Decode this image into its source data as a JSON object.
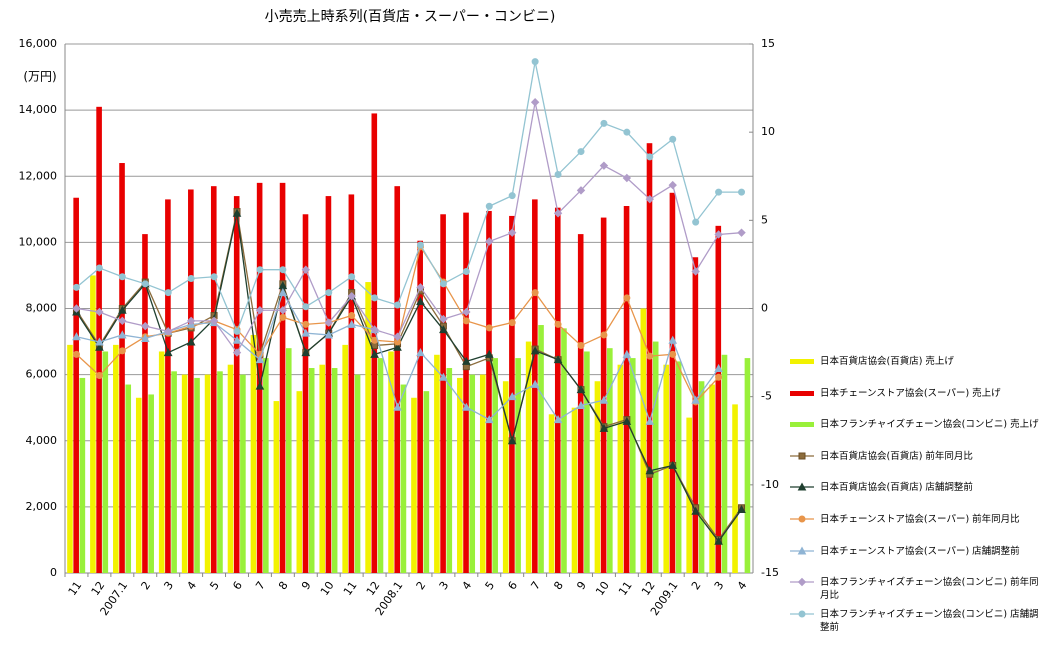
{
  "chart_data": {
    "type": "bar-line",
    "title": "小売売上時系列(百貨店・スーパー・コンビニ)",
    "y_axis_label": "(万円)",
    "categories": [
      "11",
      "12",
      "2007.1",
      "2",
      "3",
      "4",
      "5",
      "6",
      "7",
      "8",
      "9",
      "10",
      "11",
      "12",
      "2008.1",
      "2",
      "3",
      "4",
      "5",
      "6",
      "7",
      "8",
      "9",
      "10",
      "11",
      "12",
      "2009.1",
      "2",
      "3",
      "4"
    ],
    "ylim": [
      0,
      16000
    ],
    "yticks": [
      0,
      {
        "value": 2000,
        "label": "2,000"
      },
      {
        "value": 4000,
        "label": "4,000"
      },
      {
        "value": 6000,
        "label": "6,000"
      },
      {
        "value": 8000,
        "label": "8,000"
      },
      {
        "value": 10000,
        "label": "10,000"
      },
      {
        "value": 12000,
        "label": "12,000"
      },
      {
        "value": 14000,
        "label": "14,000"
      },
      {
        "value": 16000,
        "label": "16,000"
      }
    ],
    "y2lim": [
      -15,
      15
    ],
    "y2ticks": [
      -15,
      -10,
      -5,
      0,
      5,
      10,
      15
    ],
    "grid": true,
    "legend": "right",
    "series": [
      {
        "name": "日本百貨店協会(百貨店) 売上げ",
        "kind": "bar",
        "color": "#f2f200",
        "values": [
          6900,
          9000,
          6900,
          5300,
          6700,
          6000,
          6000,
          6300,
          7200,
          5200,
          5500,
          6300,
          6900,
          8800,
          6700,
          5300,
          6600,
          5900,
          6000,
          5800,
          7000,
          4800,
          5000,
          5800,
          6300,
          8000,
          6300,
          4700,
          5700,
          5100
        ]
      },
      {
        "name": "日本チェーンストア協会(スーパー) 売上げ",
        "kind": "bar",
        "color": "#e80000",
        "values": [
          11350,
          14100,
          12400,
          10250,
          11300,
          11600,
          11700,
          11400,
          11800,
          11800,
          10850,
          11400,
          11450,
          13900,
          11700,
          10050,
          10850,
          10900,
          10950,
          10800,
          11300,
          11050,
          10250,
          10750,
          11100,
          13000,
          11500,
          9550,
          10500,
          null
        ]
      },
      {
        "name": "日本フランチャイズチェーン協会(コンビニ) 売上げ",
        "kind": "bar",
        "color": "#99f03a",
        "values": [
          5900,
          6700,
          5700,
          5400,
          6100,
          5900,
          6100,
          6000,
          6500,
          6800,
          6200,
          6200,
          6000,
          6500,
          5700,
          5500,
          6200,
          6000,
          6500,
          6500,
          7500,
          7400,
          6700,
          6800,
          6500,
          7000,
          6400,
          5800,
          6600,
          6500
        ]
      },
      {
        "name": "日本百貨店協会(百貨店) 前年同月比",
        "kind": "line",
        "axis": "y2",
        "color": "#8c6c3c",
        "marker": "square",
        "values": [
          -0.1,
          -2.1,
          0,
          1.5,
          -1.4,
          -1.1,
          -0.4,
          5.5,
          -2.6,
          1.4,
          -2.5,
          -1.4,
          0.9,
          -2.1,
          -2.0,
          1.0,
          -1.0,
          -3.3,
          -2.8,
          -7.5,
          -2.3,
          -2.9,
          -4.6,
          -6.7,
          -6.3,
          -9.4,
          -8.9,
          -11.3,
          -13.1,
          -11.3
        ]
      },
      {
        "name": "日本百貨店協会(百貨店) 店舗調整前",
        "kind": "line",
        "axis": "y2",
        "color": "#1f3f2f",
        "marker": "triangle",
        "values": [
          -0.2,
          -2.2,
          -0.1,
          1.4,
          -2.5,
          -1.9,
          -0.6,
          5.4,
          -4.4,
          1.3,
          -2.5,
          -1.4,
          0.7,
          -2.6,
          -2.2,
          0.4,
          -1.2,
          -3.0,
          -2.6,
          -7.5,
          -2.4,
          -2.9,
          -4.6,
          -6.8,
          -6.4,
          -9.2,
          -8.9,
          -11.5,
          -13.2,
          -11.4
        ]
      },
      {
        "name": "日本チェーンストア協会(スーパー) 前年同月比",
        "kind": "line",
        "axis": "y2",
        "color": "#e8954a",
        "marker": "circle",
        "values": [
          -2.6,
          -3.8,
          -2.4,
          -1.6,
          -1.4,
          -1.0,
          -0.7,
          -1.2,
          -2.6,
          -0.5,
          -0.9,
          -0.8,
          -0.4,
          -1.8,
          -1.9,
          3.5,
          1.5,
          -0.7,
          -1.1,
          -0.8,
          0.9,
          -0.9,
          -2.1,
          -1.5,
          0.6,
          -2.7,
          -2.6,
          -5.3,
          -3.9,
          null
        ]
      },
      {
        "name": "日本チェーンストア協会(スーパー) 店舗調整前",
        "kind": "line",
        "axis": "y2",
        "color": "#8fb4d4",
        "marker": "triangle",
        "values": [
          -1.6,
          -1.9,
          -1.5,
          -1.7,
          -1.3,
          -0.9,
          -0.8,
          -1.8,
          -2.9,
          0.9,
          -1.4,
          -1.5,
          -0.9,
          -1.2,
          -5.6,
          -2.5,
          -3.9,
          -5.6,
          -6.3,
          -5.0,
          -4.3,
          -6.3,
          -5.5,
          -5.2,
          -2.6,
          -6.4,
          -1.8,
          -5.2,
          -3.4,
          null
        ]
      },
      {
        "name": "日本フランチャイズチェーン協会(コンビニ) 前年同月比",
        "kind": "line",
        "axis": "y2",
        "color": "#b09cc8",
        "marker": "diamond",
        "values": [
          0,
          -0.2,
          -0.7,
          -1.0,
          -1.3,
          -0.7,
          -0.7,
          -2.5,
          -0.1,
          -0.1,
          2.2,
          -0.8,
          0.7,
          -1.2,
          -1.6,
          1.2,
          -0.6,
          -0.2,
          3.8,
          4.3,
          11.7,
          5.4,
          6.7,
          8.1,
          7.4,
          6.2,
          7.0,
          2.1,
          4.2,
          4.3
        ]
      },
      {
        "name": "日本フランチャイズチェーン協会(コンビニ) 店舗調整前",
        "kind": "line",
        "axis": "y2",
        "color": "#93c4d2",
        "marker": "circle",
        "values": [
          1.2,
          2.3,
          1.8,
          1.4,
          0.9,
          1.7,
          1.8,
          -1.3,
          2.2,
          2.2,
          0.1,
          0.9,
          1.8,
          0.6,
          0.2,
          3.6,
          1.4,
          2.1,
          5.8,
          6.4,
          14.0,
          7.6,
          8.9,
          10.5,
          10.0,
          8.6,
          9.6,
          4.9,
          6.6,
          6.6
        ]
      }
    ]
  }
}
